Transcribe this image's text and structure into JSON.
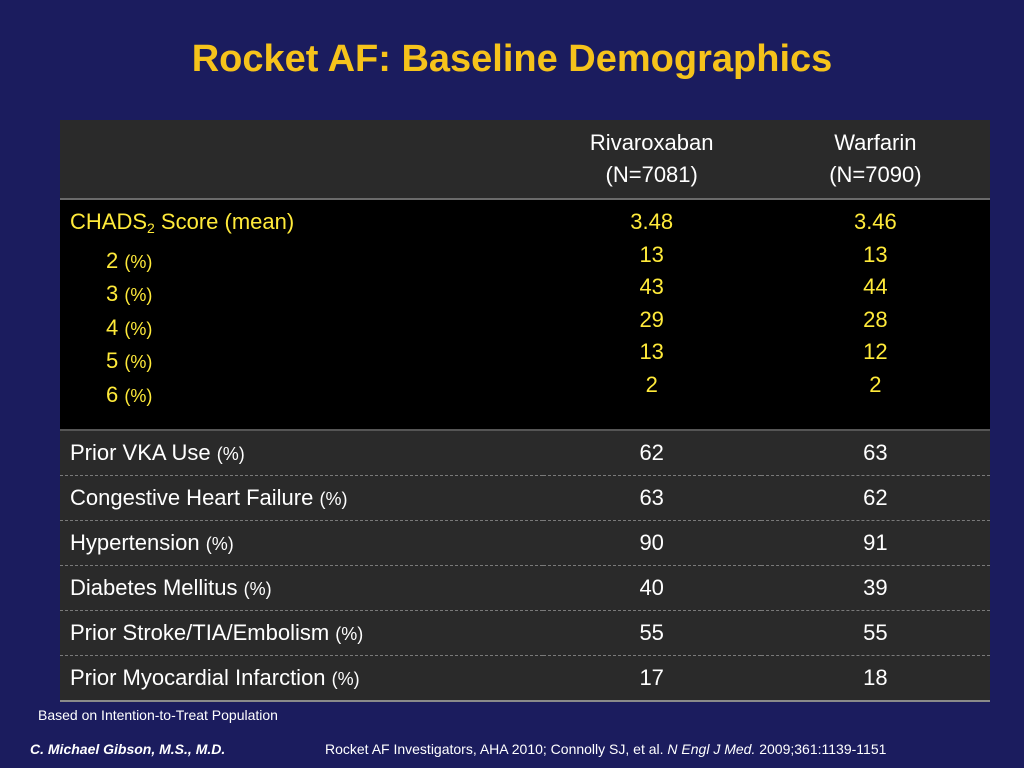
{
  "title": "Rocket AF: Baseline Demographics",
  "header": {
    "col_a": [
      "Rivaroxaban",
      "(N=7081)"
    ],
    "col_b": [
      "Warfarin",
      "(N=7090)"
    ]
  },
  "chads": {
    "label_main": "CHADS",
    "label_sub": "2",
    "label_rest": " Score (mean)",
    "mean_a": "3.48",
    "mean_b": "3.46",
    "pct_unit": "(%)",
    "rows": [
      {
        "score": "2",
        "a": "13",
        "b": "13"
      },
      {
        "score": "3",
        "a": "43",
        "b": "44"
      },
      {
        "score": "4",
        "a": "29",
        "b": "28"
      },
      {
        "score": "5",
        "a": "13",
        "b": "12"
      },
      {
        "score": "6",
        "a": "2",
        "b": "2"
      }
    ]
  },
  "rows": [
    {
      "label": "Prior VKA Use",
      "unit": "(%)",
      "a": "62",
      "b": "63"
    },
    {
      "label": "Congestive Heart Failure",
      "unit": "(%)",
      "a": "63",
      "b": "62"
    },
    {
      "label": "Hypertension",
      "unit": "(%)",
      "a": "90",
      "b": "91"
    },
    {
      "label": "Diabetes Mellitus",
      "unit": "(%)",
      "a": "40",
      "b": "39"
    },
    {
      "label": "Prior Stroke/TIA/Embolism",
      "unit": "(%)",
      "a": "55",
      "b": "55"
    },
    {
      "label": "Prior Myocardial Infarction",
      "unit": "(%)",
      "a": "17",
      "b": "18"
    }
  ],
  "footnote": "Based on Intention-to-Treat Population",
  "author": "C. Michael Gibson, M.S., M.D.",
  "citation": {
    "pre": "Rocket AF Investigators, AHA 2010; Connolly SJ, et al. ",
    "journal": "N Engl J Med.",
    "post": " 2009;361:1139-1151"
  }
}
